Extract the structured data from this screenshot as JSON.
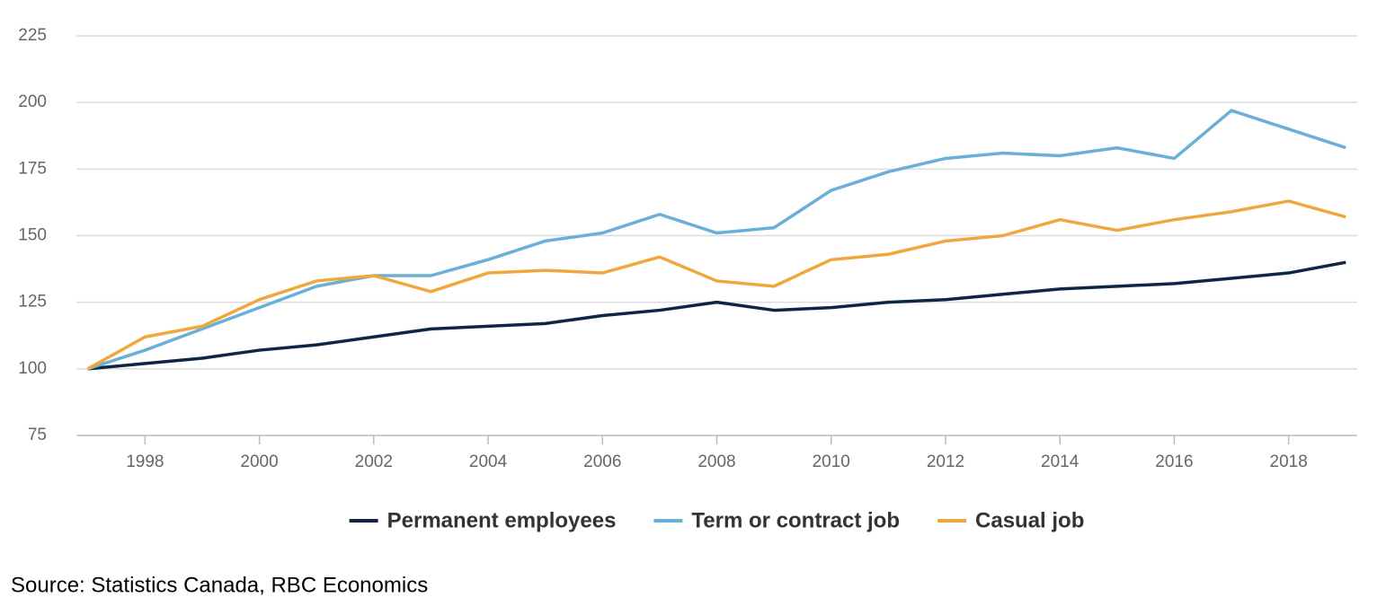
{
  "chart_data": {
    "type": "line",
    "x": [
      1997,
      1998,
      1999,
      2000,
      2001,
      2002,
      2003,
      2004,
      2005,
      2006,
      2007,
      2008,
      2009,
      2010,
      2011,
      2012,
      2013,
      2014,
      2015,
      2016,
      2017,
      2018,
      2019
    ],
    "series": [
      {
        "name": "Permanent employees",
        "color": "#0f2545",
        "values": [
          100,
          102,
          104,
          107,
          109,
          112,
          115,
          116,
          117,
          120,
          122,
          125,
          122,
          123,
          125,
          126,
          128,
          130,
          131,
          132,
          134,
          136,
          140
        ]
      },
      {
        "name": "Term or contract job",
        "color": "#6aafd8",
        "values": [
          100,
          107,
          115,
          123,
          131,
          135,
          135,
          141,
          148,
          151,
          158,
          151,
          153,
          167,
          174,
          179,
          181,
          180,
          183,
          179,
          197,
          190,
          183
        ]
      },
      {
        "name": "Casual job",
        "color": "#eea83d",
        "values": [
          100,
          112,
          116,
          126,
          133,
          135,
          129,
          136,
          137,
          136,
          142,
          133,
          131,
          141,
          143,
          148,
          150,
          156,
          152,
          156,
          159,
          163,
          157
        ]
      }
    ],
    "xlim": [
      1996.8,
      2019.2
    ],
    "xticks": [
      1998,
      2000,
      2002,
      2004,
      2006,
      2008,
      2010,
      2012,
      2014,
      2016,
      2018
    ],
    "ylim": [
      75,
      225
    ],
    "yticks": [
      75,
      100,
      125,
      150,
      175,
      200,
      225
    ],
    "grid": true,
    "source": "Source: Statistics Canada, RBC Economics"
  }
}
